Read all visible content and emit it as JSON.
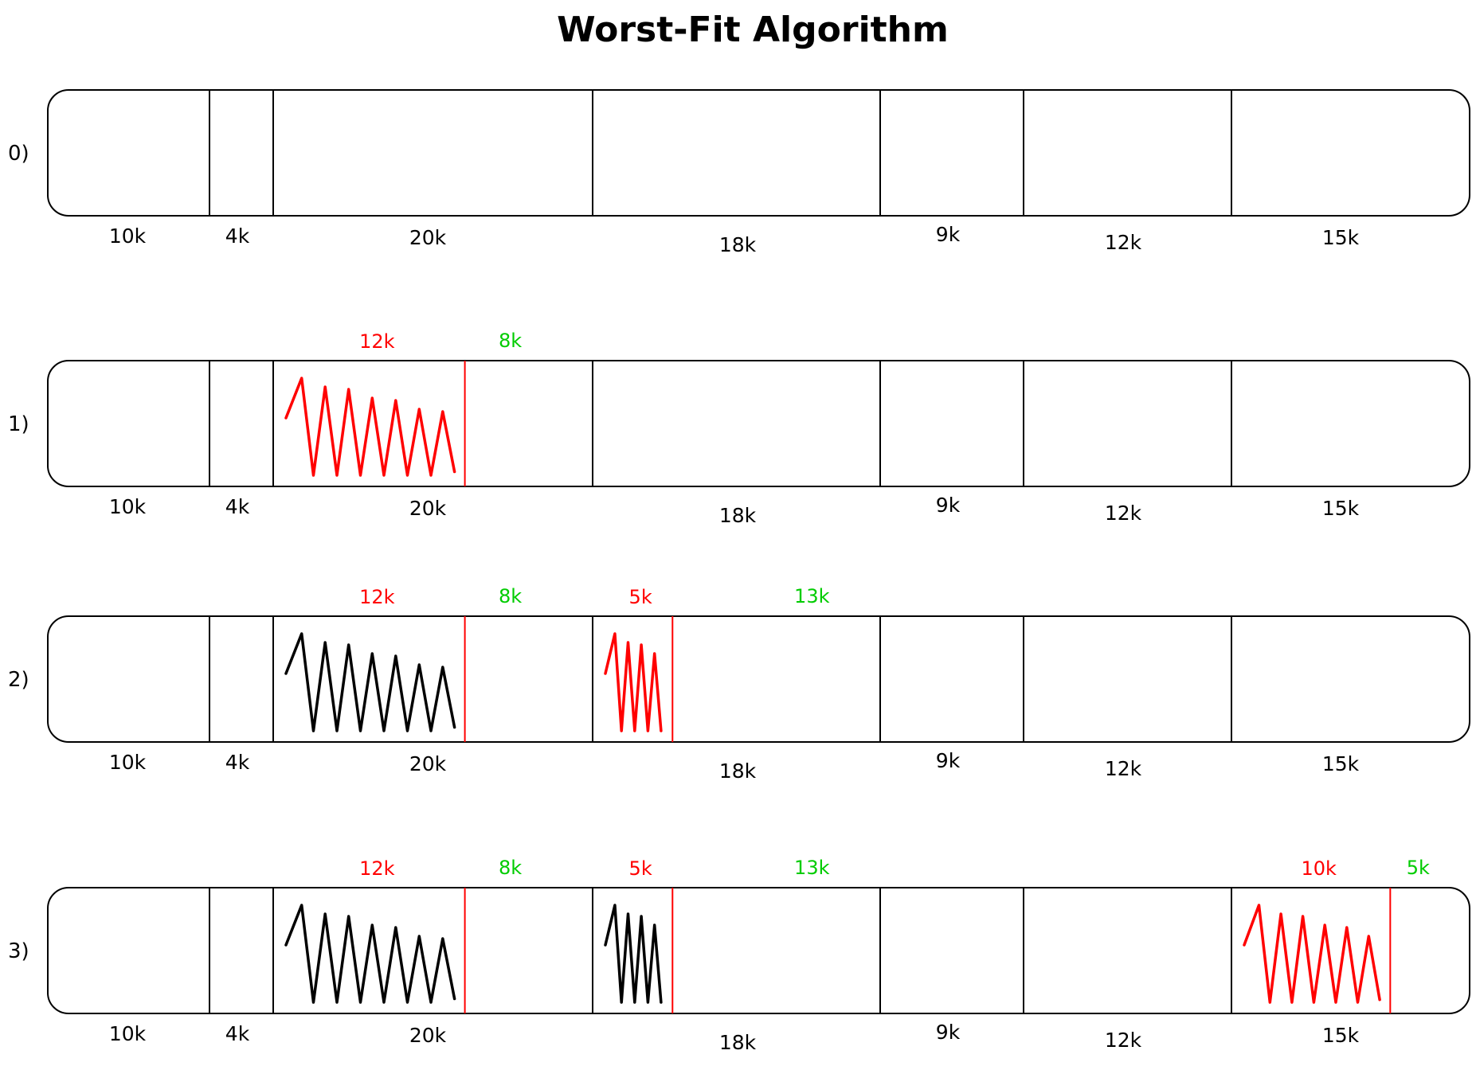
{
  "title": "Worst-Fit Algorithm",
  "block_sizes": [
    "10k",
    "4k",
    "20k",
    "18k",
    "9k",
    "12k",
    "15k"
  ],
  "block_kb": [
    10,
    4,
    20,
    18,
    9,
    12,
    15
  ],
  "colors": {
    "new_allocation": "#ff0000",
    "previous_allocation": "#000000",
    "free": "#00cc00",
    "outline": "#000000"
  },
  "steps": [
    {
      "label": "0)",
      "allocations": []
    },
    {
      "label": "1)",
      "allocations": [
        {
          "block": 2,
          "used": "12k",
          "used_kb": 12,
          "free": "8k",
          "state": "new"
        }
      ]
    },
    {
      "label": "2)",
      "allocations": [
        {
          "block": 2,
          "used": "12k",
          "used_kb": 12,
          "free": "8k",
          "state": "previous"
        },
        {
          "block": 3,
          "used": "5k",
          "used_kb": 5,
          "free": "13k",
          "state": "new"
        }
      ]
    },
    {
      "label": "3)",
      "allocations": [
        {
          "block": 2,
          "used": "12k",
          "used_kb": 12,
          "free": "8k",
          "state": "previous"
        },
        {
          "block": 3,
          "used": "5k",
          "used_kb": 5,
          "free": "13k",
          "state": "previous"
        },
        {
          "block": 6,
          "used": "10k",
          "used_kb": 10,
          "free": "5k",
          "state": "new"
        }
      ]
    }
  ]
}
